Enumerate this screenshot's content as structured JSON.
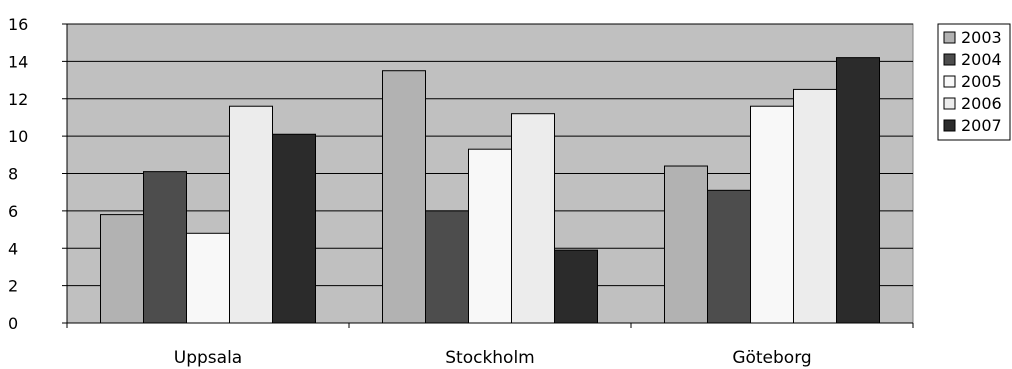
{
  "chart_data": {
    "type": "bar",
    "title": "",
    "xlabel": "",
    "ylabel": "",
    "categories": [
      "Uppsala",
      "Stockholm",
      "Göteborg"
    ],
    "series": [
      {
        "name": "2003",
        "values": [
          5.8,
          13.5,
          8.4
        ],
        "color": "#b2b2b2"
      },
      {
        "name": "2004",
        "values": [
          8.1,
          6.0,
          7.1
        ],
        "color": "#4d4d4d"
      },
      {
        "name": "2005",
        "values": [
          4.8,
          9.3,
          11.6
        ],
        "color": "#f8f8f8"
      },
      {
        "name": "2006",
        "values": [
          11.6,
          11.2,
          12.5
        ],
        "color": "#ececec"
      },
      {
        "name": "2007",
        "values": [
          10.1,
          3.9,
          14.2
        ],
        "color": "#2b2b2b"
      }
    ],
    "ylim": [
      0,
      16
    ],
    "yticks": [
      "0",
      "2",
      "4",
      "6",
      "8",
      "10",
      "12",
      "14",
      "16"
    ],
    "grid": true,
    "legend_position": "right",
    "plot_background": "#c0c0c0"
  }
}
